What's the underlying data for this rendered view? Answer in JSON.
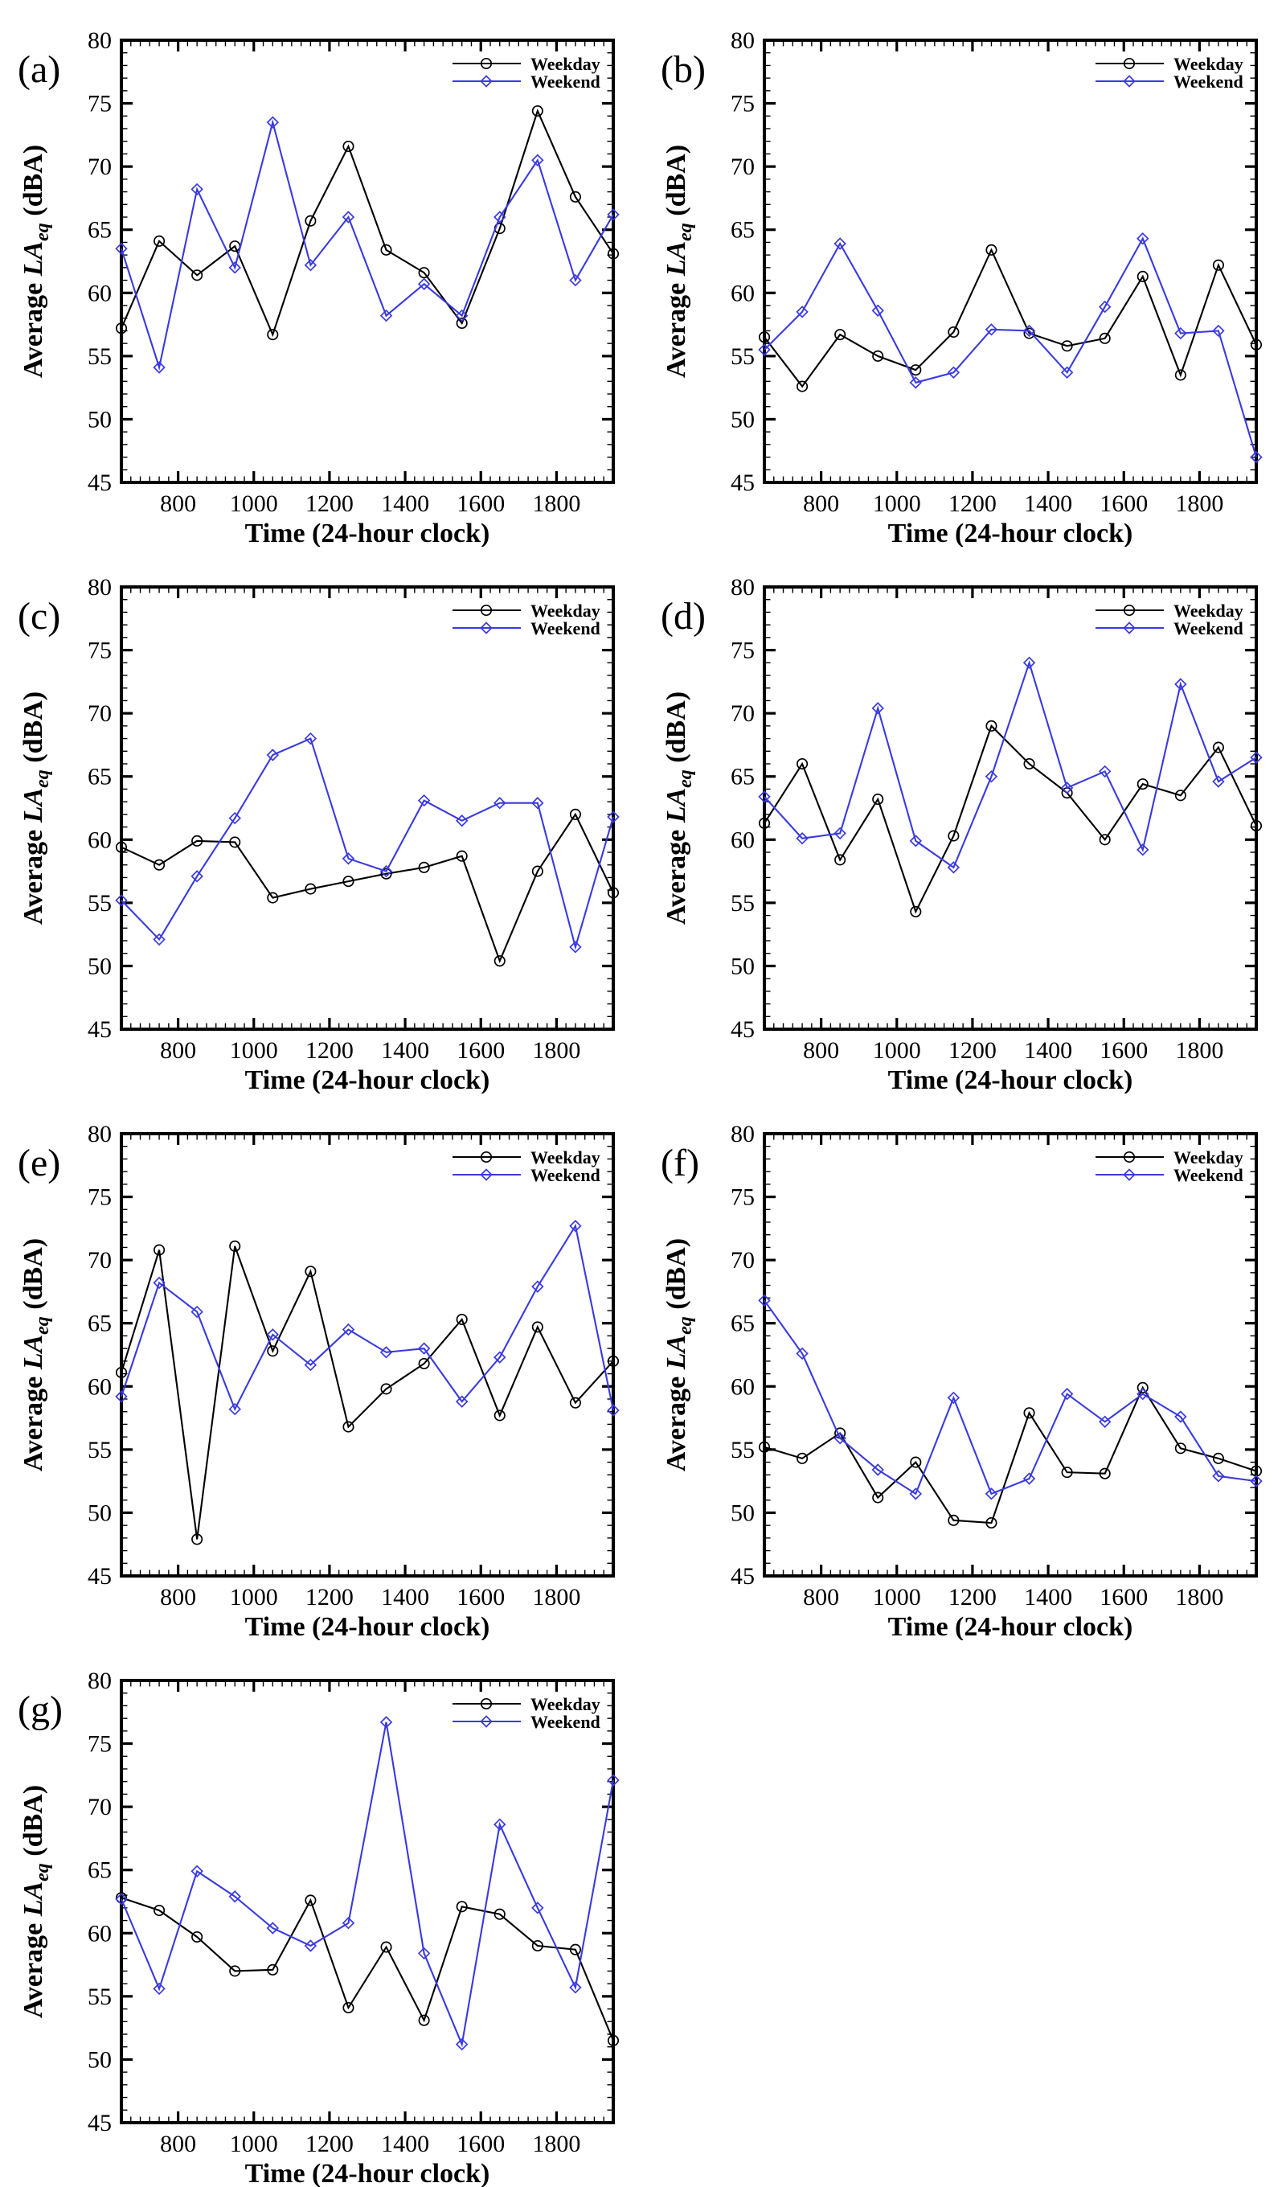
{
  "figure": {
    "x_axis_title": "Time (24-hour clock)",
    "y_axis_title": {
      "prefix": "Average ",
      "italic": "LA",
      "subscript": "eq",
      "suffix": " (dBA)"
    },
    "legend": [
      {
        "label": "Weekday",
        "color": "#000000",
        "marker": "circle"
      },
      {
        "label": "Weekend",
        "color": "#3A3AE0",
        "marker": "diamond"
      }
    ],
    "colors": {
      "weekday_line": "#000000",
      "weekend_line": "#3A3AE0",
      "frame": "#000000",
      "text": "#000000",
      "background": "#ffffff"
    }
  },
  "axes": {
    "x": {
      "min": 650,
      "max": 1950,
      "major_ticks": [
        800,
        1000,
        1200,
        1400,
        1600,
        1800
      ],
      "minor_step": 25
    },
    "y": {
      "min": 45,
      "max": 80,
      "major_ticks": [
        45,
        50,
        55,
        60,
        65,
        70,
        75,
        80
      ],
      "minor_step": 1
    }
  },
  "chart_data": [
    {
      "type": "line",
      "panel": "(a)",
      "xlabel": "Time (24-hour clock)",
      "ylabel": "Average LAeq (dBA)",
      "xlim": [
        650,
        1950
      ],
      "ylim": [
        45,
        80
      ],
      "x": [
        650,
        750,
        850,
        950,
        1050,
        1150,
        1250,
        1350,
        1450,
        1550,
        1650,
        1750,
        1850,
        1950
      ],
      "series": [
        {
          "name": "Weekday",
          "values": [
            57.2,
            64.1,
            61.4,
            63.7,
            56.7,
            65.7,
            71.6,
            63.4,
            61.6,
            57.6,
            65.1,
            74.4,
            67.6,
            63.1
          ]
        },
        {
          "name": "Weekend",
          "values": [
            63.5,
            54.1,
            68.2,
            62.0,
            73.5,
            62.2,
            66.0,
            58.2,
            60.7,
            58.2,
            66.0,
            70.5,
            61.0,
            66.2
          ]
        }
      ]
    },
    {
      "type": "line",
      "panel": "(b)",
      "xlabel": "Time (24-hour clock)",
      "ylabel": "Average LAeq (dBA)",
      "xlim": [
        650,
        1950
      ],
      "ylim": [
        45,
        80
      ],
      "x": [
        650,
        750,
        850,
        950,
        1050,
        1150,
        1250,
        1350,
        1450,
        1550,
        1650,
        1750,
        1850,
        1950
      ],
      "series": [
        {
          "name": "Weekday",
          "values": [
            56.5,
            52.6,
            56.7,
            55.0,
            53.9,
            56.9,
            63.4,
            56.8,
            55.8,
            56.4,
            61.3,
            53.5,
            62.2,
            55.9
          ]
        },
        {
          "name": "Weekend",
          "values": [
            55.5,
            58.5,
            63.9,
            58.6,
            52.9,
            53.7,
            57.1,
            57.0,
            53.7,
            58.9,
            64.3,
            56.8,
            57.0,
            47.0
          ]
        }
      ]
    },
    {
      "type": "line",
      "panel": "(c)",
      "xlabel": "Time (24-hour clock)",
      "ylabel": "Average LAeq (dBA)",
      "xlim": [
        650,
        1950
      ],
      "ylim": [
        45,
        80
      ],
      "x": [
        650,
        750,
        850,
        950,
        1050,
        1150,
        1250,
        1350,
        1450,
        1550,
        1650,
        1750,
        1850,
        1950
      ],
      "series": [
        {
          "name": "Weekday",
          "values": [
            59.4,
            58.0,
            59.9,
            59.8,
            55.4,
            56.1,
            56.7,
            57.3,
            57.8,
            58.7,
            50.4,
            57.5,
            62.0,
            55.8
          ]
        },
        {
          "name": "Weekend",
          "values": [
            55.2,
            52.1,
            57.1,
            61.7,
            66.7,
            68.0,
            58.5,
            57.5,
            63.1,
            61.5,
            62.9,
            62.9,
            51.5,
            61.8
          ]
        }
      ]
    },
    {
      "type": "line",
      "panel": "(d)",
      "xlabel": "Time (24-hour clock)",
      "ylabel": "Average LAeq (dBA)",
      "xlim": [
        650,
        1950
      ],
      "ylim": [
        45,
        80
      ],
      "x": [
        650,
        750,
        850,
        950,
        1050,
        1150,
        1250,
        1350,
        1450,
        1550,
        1650,
        1750,
        1850,
        1950
      ],
      "series": [
        {
          "name": "Weekday",
          "values": [
            61.3,
            66.0,
            58.4,
            63.2,
            54.3,
            60.3,
            69.0,
            66.0,
            63.7,
            60.0,
            64.4,
            63.5,
            67.3,
            61.1
          ]
        },
        {
          "name": "Weekend",
          "values": [
            63.4,
            60.1,
            60.5,
            70.4,
            59.9,
            57.8,
            65.0,
            74.0,
            64.1,
            65.4,
            59.2,
            72.3,
            64.6,
            66.5
          ]
        }
      ]
    },
    {
      "type": "line",
      "panel": "(e)",
      "xlabel": "Time (24-hour clock)",
      "ylabel": "Average LAeq (dBA)",
      "xlim": [
        650,
        1950
      ],
      "ylim": [
        45,
        80
      ],
      "x": [
        650,
        750,
        850,
        950,
        1050,
        1150,
        1250,
        1350,
        1450,
        1550,
        1650,
        1750,
        1850,
        1950
      ],
      "series": [
        {
          "name": "Weekday",
          "values": [
            61.1,
            70.8,
            47.9,
            71.1,
            62.8,
            69.1,
            56.8,
            59.8,
            61.8,
            65.3,
            57.7,
            64.7,
            58.7,
            62.0
          ]
        },
        {
          "name": "Weekend",
          "values": [
            59.2,
            68.2,
            65.9,
            58.2,
            64.1,
            61.7,
            64.5,
            62.7,
            63.0,
            58.8,
            62.3,
            67.9,
            72.7,
            58.1
          ]
        }
      ]
    },
    {
      "type": "line",
      "panel": "(f)",
      "xlabel": "Time (24-hour clock)",
      "ylabel": "Average LAeq (dBA)",
      "xlim": [
        650,
        1950
      ],
      "ylim": [
        45,
        80
      ],
      "x": [
        650,
        750,
        850,
        950,
        1050,
        1150,
        1250,
        1350,
        1450,
        1550,
        1650,
        1750,
        1850,
        1950
      ],
      "series": [
        {
          "name": "Weekday",
          "values": [
            55.2,
            54.3,
            56.3,
            51.2,
            54.0,
            49.4,
            49.2,
            57.9,
            53.2,
            53.1,
            59.9,
            55.1,
            54.3,
            53.3
          ]
        },
        {
          "name": "Weekend",
          "values": [
            66.8,
            62.6,
            55.9,
            53.4,
            51.5,
            59.1,
            51.5,
            52.7,
            59.4,
            57.2,
            59.4,
            57.6,
            52.9,
            52.5
          ]
        }
      ]
    },
    {
      "type": "line",
      "panel": "(g)",
      "xlabel": "Time (24-hour clock)",
      "ylabel": "Average LAeq (dBA)",
      "xlim": [
        650,
        1950
      ],
      "ylim": [
        45,
        80
      ],
      "x": [
        650,
        750,
        850,
        950,
        1050,
        1150,
        1250,
        1350,
        1450,
        1550,
        1650,
        1750,
        1850,
        1950
      ],
      "series": [
        {
          "name": "Weekday",
          "values": [
            62.8,
            61.8,
            59.7,
            57.0,
            57.1,
            62.6,
            54.1,
            58.9,
            53.1,
            62.1,
            61.5,
            59.0,
            58.7,
            51.5
          ]
        },
        {
          "name": "Weekend",
          "values": [
            62.7,
            55.6,
            64.9,
            62.9,
            60.4,
            59.0,
            60.8,
            76.7,
            58.4,
            51.2,
            68.6,
            62.0,
            55.7,
            72.1
          ]
        }
      ]
    }
  ]
}
